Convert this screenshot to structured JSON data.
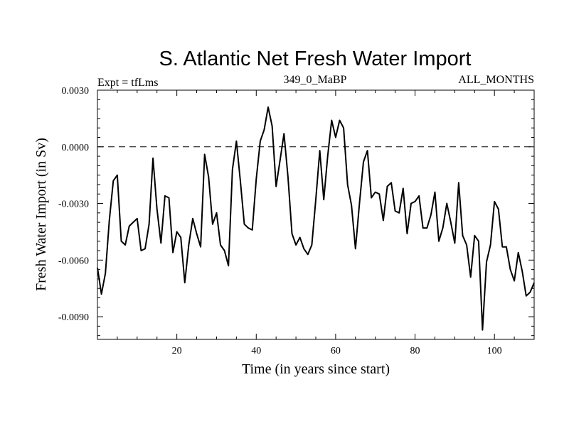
{
  "chart_data": {
    "type": "line",
    "title": "S. Atlantic Net Fresh Water Import",
    "left_label": "Expt = tfLms",
    "center_label": "349_0_MaBP",
    "right_label": "ALL_MONTHS",
    "xlabel": "Time (in years since start)",
    "ylabel": "Fresh Water Import (in Sv)",
    "xlim": [
      0,
      110
    ],
    "ylim": [
      -0.0102,
      0.003
    ],
    "xticks": [
      20,
      40,
      60,
      80,
      100
    ],
    "yticks": [
      0.003,
      0.0,
      -0.003,
      -0.006,
      -0.009
    ],
    "ytick_labels": [
      "0.0030",
      "0.0000",
      "-0.0030",
      "-0.0060",
      "-0.0090"
    ],
    "reference_line": 0.0,
    "series": [
      {
        "name": "Net Fresh Water Import",
        "x": [
          0,
          1,
          2,
          3,
          4,
          5,
          6,
          7,
          8,
          9,
          10,
          11,
          12,
          13,
          14,
          15,
          16,
          17,
          18,
          19,
          20,
          21,
          22,
          23,
          24,
          25,
          26,
          27,
          28,
          29,
          30,
          31,
          32,
          33,
          34,
          35,
          36,
          37,
          38,
          39,
          40,
          41,
          42,
          43,
          44,
          45,
          46,
          47,
          48,
          49,
          50,
          51,
          52,
          53,
          54,
          55,
          56,
          57,
          58,
          59,
          60,
          61,
          62,
          63,
          64,
          65,
          66,
          67,
          68,
          69,
          70,
          71,
          72,
          73,
          74,
          75,
          76,
          77,
          78,
          79,
          80,
          81,
          82,
          83,
          84,
          85,
          86,
          87,
          88,
          89,
          90,
          91,
          92,
          93,
          94,
          95,
          96,
          97,
          98,
          99,
          100,
          101,
          102,
          103,
          104,
          105,
          106,
          107,
          108,
          109,
          110
        ],
        "values": [
          -0.0064,
          -0.0078,
          -0.0067,
          -0.0039,
          -0.0018,
          -0.0015,
          -0.005,
          -0.0052,
          -0.0042,
          -0.004,
          -0.0038,
          -0.0055,
          -0.0054,
          -0.0041,
          -0.0006,
          -0.0033,
          -0.0051,
          -0.0026,
          -0.0027,
          -0.0056,
          -0.0045,
          -0.0048,
          -0.0072,
          -0.0052,
          -0.0038,
          -0.0046,
          -0.0053,
          -0.0004,
          -0.0016,
          -0.0041,
          -0.0035,
          -0.0052,
          -0.0055,
          -0.0063,
          -0.0012,
          0.0003,
          -0.0018,
          -0.0041,
          -0.0043,
          -0.0044,
          -0.0017,
          0.0003,
          0.0009,
          0.0021,
          0.0011,
          -0.0021,
          -0.0007,
          0.0007,
          -0.0016,
          -0.0046,
          -0.0052,
          -0.0048,
          -0.0054,
          -0.0057,
          -0.0052,
          -0.0028,
          -0.0002,
          -0.0028,
          -0.0005,
          0.0014,
          0.0005,
          0.0014,
          0.001,
          -0.002,
          -0.0031,
          -0.0054,
          -0.003,
          -0.0008,
          -0.0002,
          -0.0027,
          -0.0024,
          -0.0025,
          -0.0039,
          -0.0021,
          -0.0019,
          -0.0034,
          -0.0035,
          -0.0022,
          -0.0046,
          -0.003,
          -0.0029,
          -0.0026,
          -0.0043,
          -0.0043,
          -0.0036,
          -0.0024,
          -0.005,
          -0.0043,
          -0.003,
          -0.004,
          -0.0051,
          -0.0019,
          -0.0047,
          -0.0052,
          -0.0069,
          -0.0047,
          -0.005,
          -0.0097,
          -0.0061,
          -0.0052,
          -0.0029,
          -0.0033,
          -0.0053,
          -0.0053,
          -0.0065,
          -0.0071,
          -0.0056,
          -0.0066,
          -0.0079,
          -0.0077,
          -0.0072
        ]
      }
    ]
  }
}
